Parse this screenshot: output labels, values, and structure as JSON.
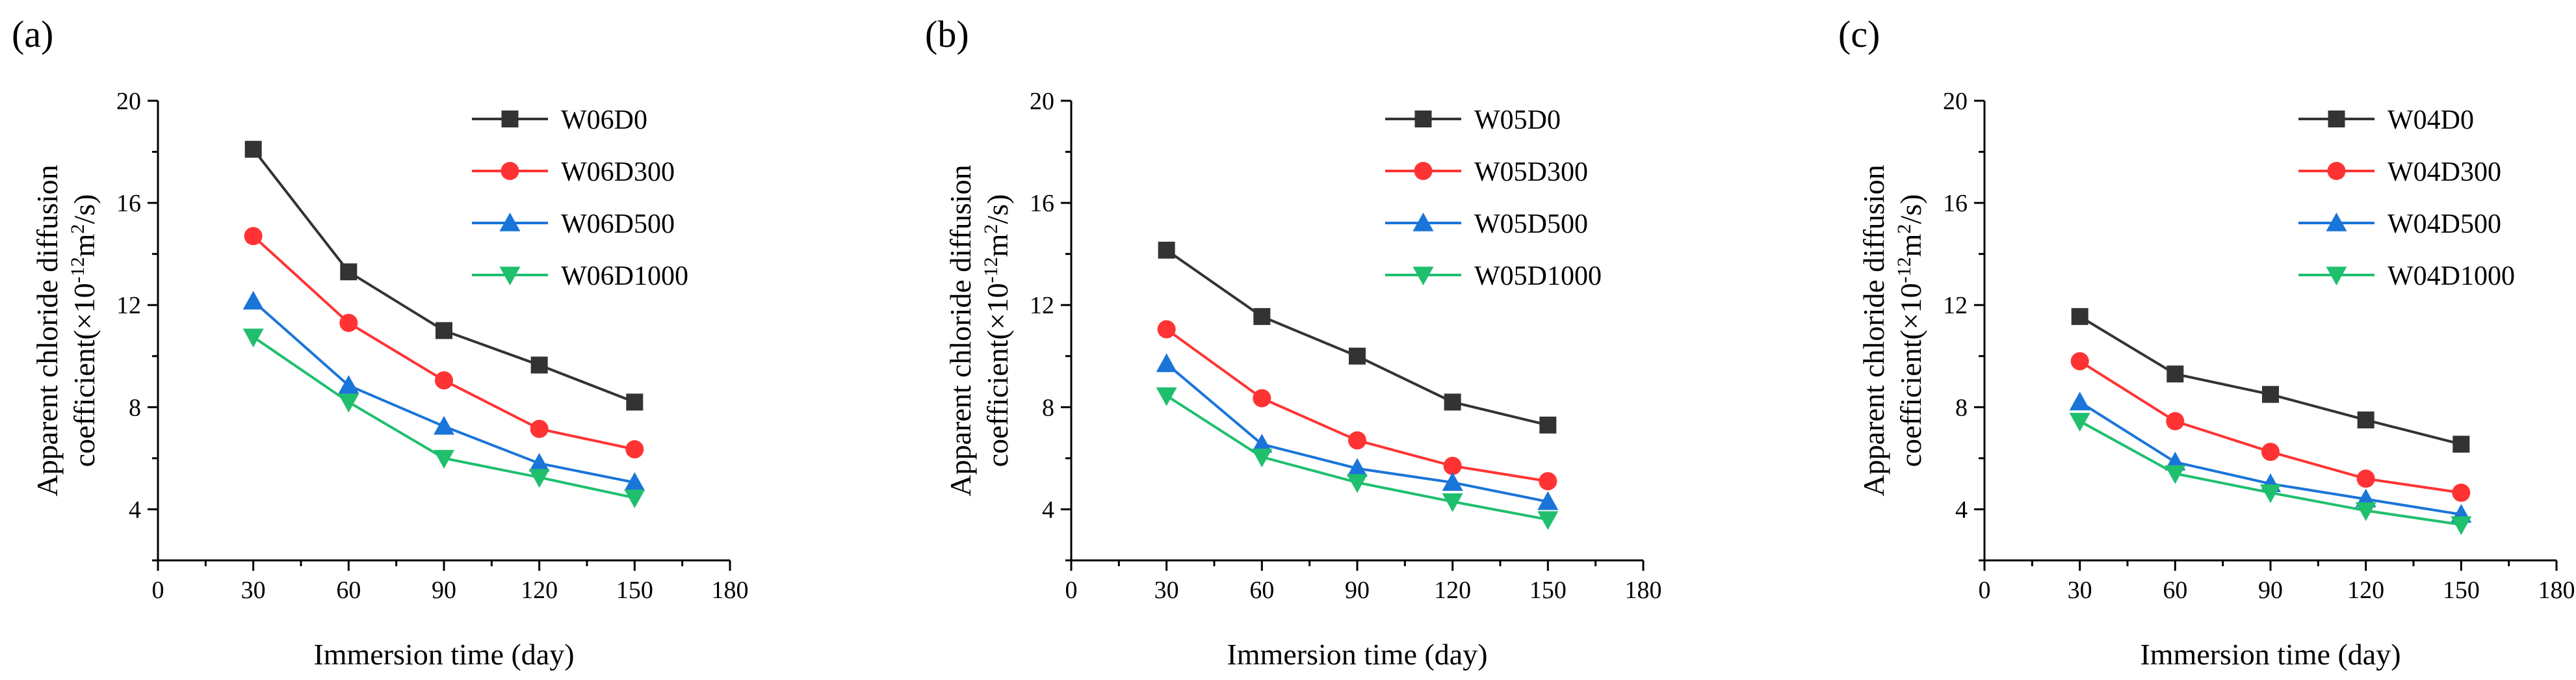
{
  "figure": {
    "colors": {
      "D0": "#333333",
      "D300": "#ff3333",
      "D500": "#1a75d9",
      "D1000": "#1fbf6e"
    },
    "markers": [
      "square",
      "circle",
      "triangle-up",
      "triangle-down"
    ]
  },
  "chart_data": [
    {
      "panel_label": "(a)",
      "type": "line",
      "xlabel": "Immersion time (day)",
      "ylabel_line1": "Apparent chloride diffusion",
      "ylabel_line2_prefix": "coefficient(×10",
      "ylabel_sup1": "-12",
      "ylabel_mid": "m",
      "ylabel_sup2": "2",
      "ylabel_suffix": "/s)",
      "xlim": [
        0,
        180
      ],
      "ylim": [
        2,
        20
      ],
      "xticks": [
        0,
        30,
        60,
        90,
        120,
        150,
        180
      ],
      "yticks": [
        4,
        8,
        12,
        16,
        20
      ],
      "x": [
        30,
        60,
        90,
        120,
        150
      ],
      "series": [
        {
          "name": "W06D0",
          "values": [
            18.1,
            13.3,
            11.0,
            9.65,
            8.2
          ]
        },
        {
          "name": "W06D300",
          "values": [
            14.7,
            11.3,
            9.05,
            7.15,
            6.35
          ]
        },
        {
          "name": "W06D500",
          "values": [
            12.15,
            8.85,
            7.25,
            5.8,
            5.05
          ]
        },
        {
          "name": "W06D1000",
          "values": [
            10.75,
            8.2,
            6.0,
            5.25,
            4.45
          ]
        }
      ]
    },
    {
      "panel_label": "(b)",
      "type": "line",
      "xlabel": "Immersion time (day)",
      "ylabel_line1": "Apparent chloride diffusion",
      "ylabel_line2_prefix": "coefficient(×10",
      "ylabel_sup1": "-12",
      "ylabel_mid": "m",
      "ylabel_sup2": "2",
      "ylabel_suffix": "/s)",
      "xlim": [
        0,
        180
      ],
      "ylim": [
        2,
        20
      ],
      "xticks": [
        0,
        30,
        60,
        90,
        120,
        150,
        180
      ],
      "yticks": [
        4,
        8,
        12,
        16,
        20
      ],
      "x": [
        30,
        60,
        90,
        120,
        150
      ],
      "series": [
        {
          "name": "W05D0",
          "values": [
            14.15,
            11.55,
            10.0,
            8.2,
            7.3
          ]
        },
        {
          "name": "W05D300",
          "values": [
            11.05,
            8.35,
            6.7,
            5.7,
            5.1
          ]
        },
        {
          "name": "W05D500",
          "values": [
            9.7,
            6.55,
            5.6,
            5.05,
            4.3
          ]
        },
        {
          "name": "W05D1000",
          "values": [
            8.45,
            6.05,
            5.05,
            4.3,
            3.6
          ]
        }
      ]
    },
    {
      "panel_label": "(c)",
      "type": "line",
      "xlabel": "Immersion time (day)",
      "ylabel_line1": "Apparent chloride diffusion",
      "ylabel_line2_prefix": "coefficient(×10",
      "ylabel_sup1": "-12",
      "ylabel_mid": "m",
      "ylabel_sup2": "2",
      "ylabel_suffix": "/s)",
      "xlim": [
        0,
        180
      ],
      "ylim": [
        2,
        20
      ],
      "xticks": [
        0,
        30,
        60,
        90,
        120,
        150,
        180
      ],
      "yticks": [
        4,
        8,
        12,
        16,
        20
      ],
      "x": [
        30,
        60,
        90,
        120,
        150
      ],
      "series": [
        {
          "name": "W04D0",
          "values": [
            11.55,
            9.3,
            8.5,
            7.5,
            6.55
          ]
        },
        {
          "name": "W04D300",
          "values": [
            9.8,
            7.45,
            6.25,
            5.2,
            4.65
          ]
        },
        {
          "name": "W04D500",
          "values": [
            8.2,
            5.85,
            5.0,
            4.4,
            3.8
          ]
        },
        {
          "name": "W04D1000",
          "values": [
            7.45,
            5.4,
            4.65,
            3.95,
            3.4
          ]
        }
      ]
    }
  ]
}
